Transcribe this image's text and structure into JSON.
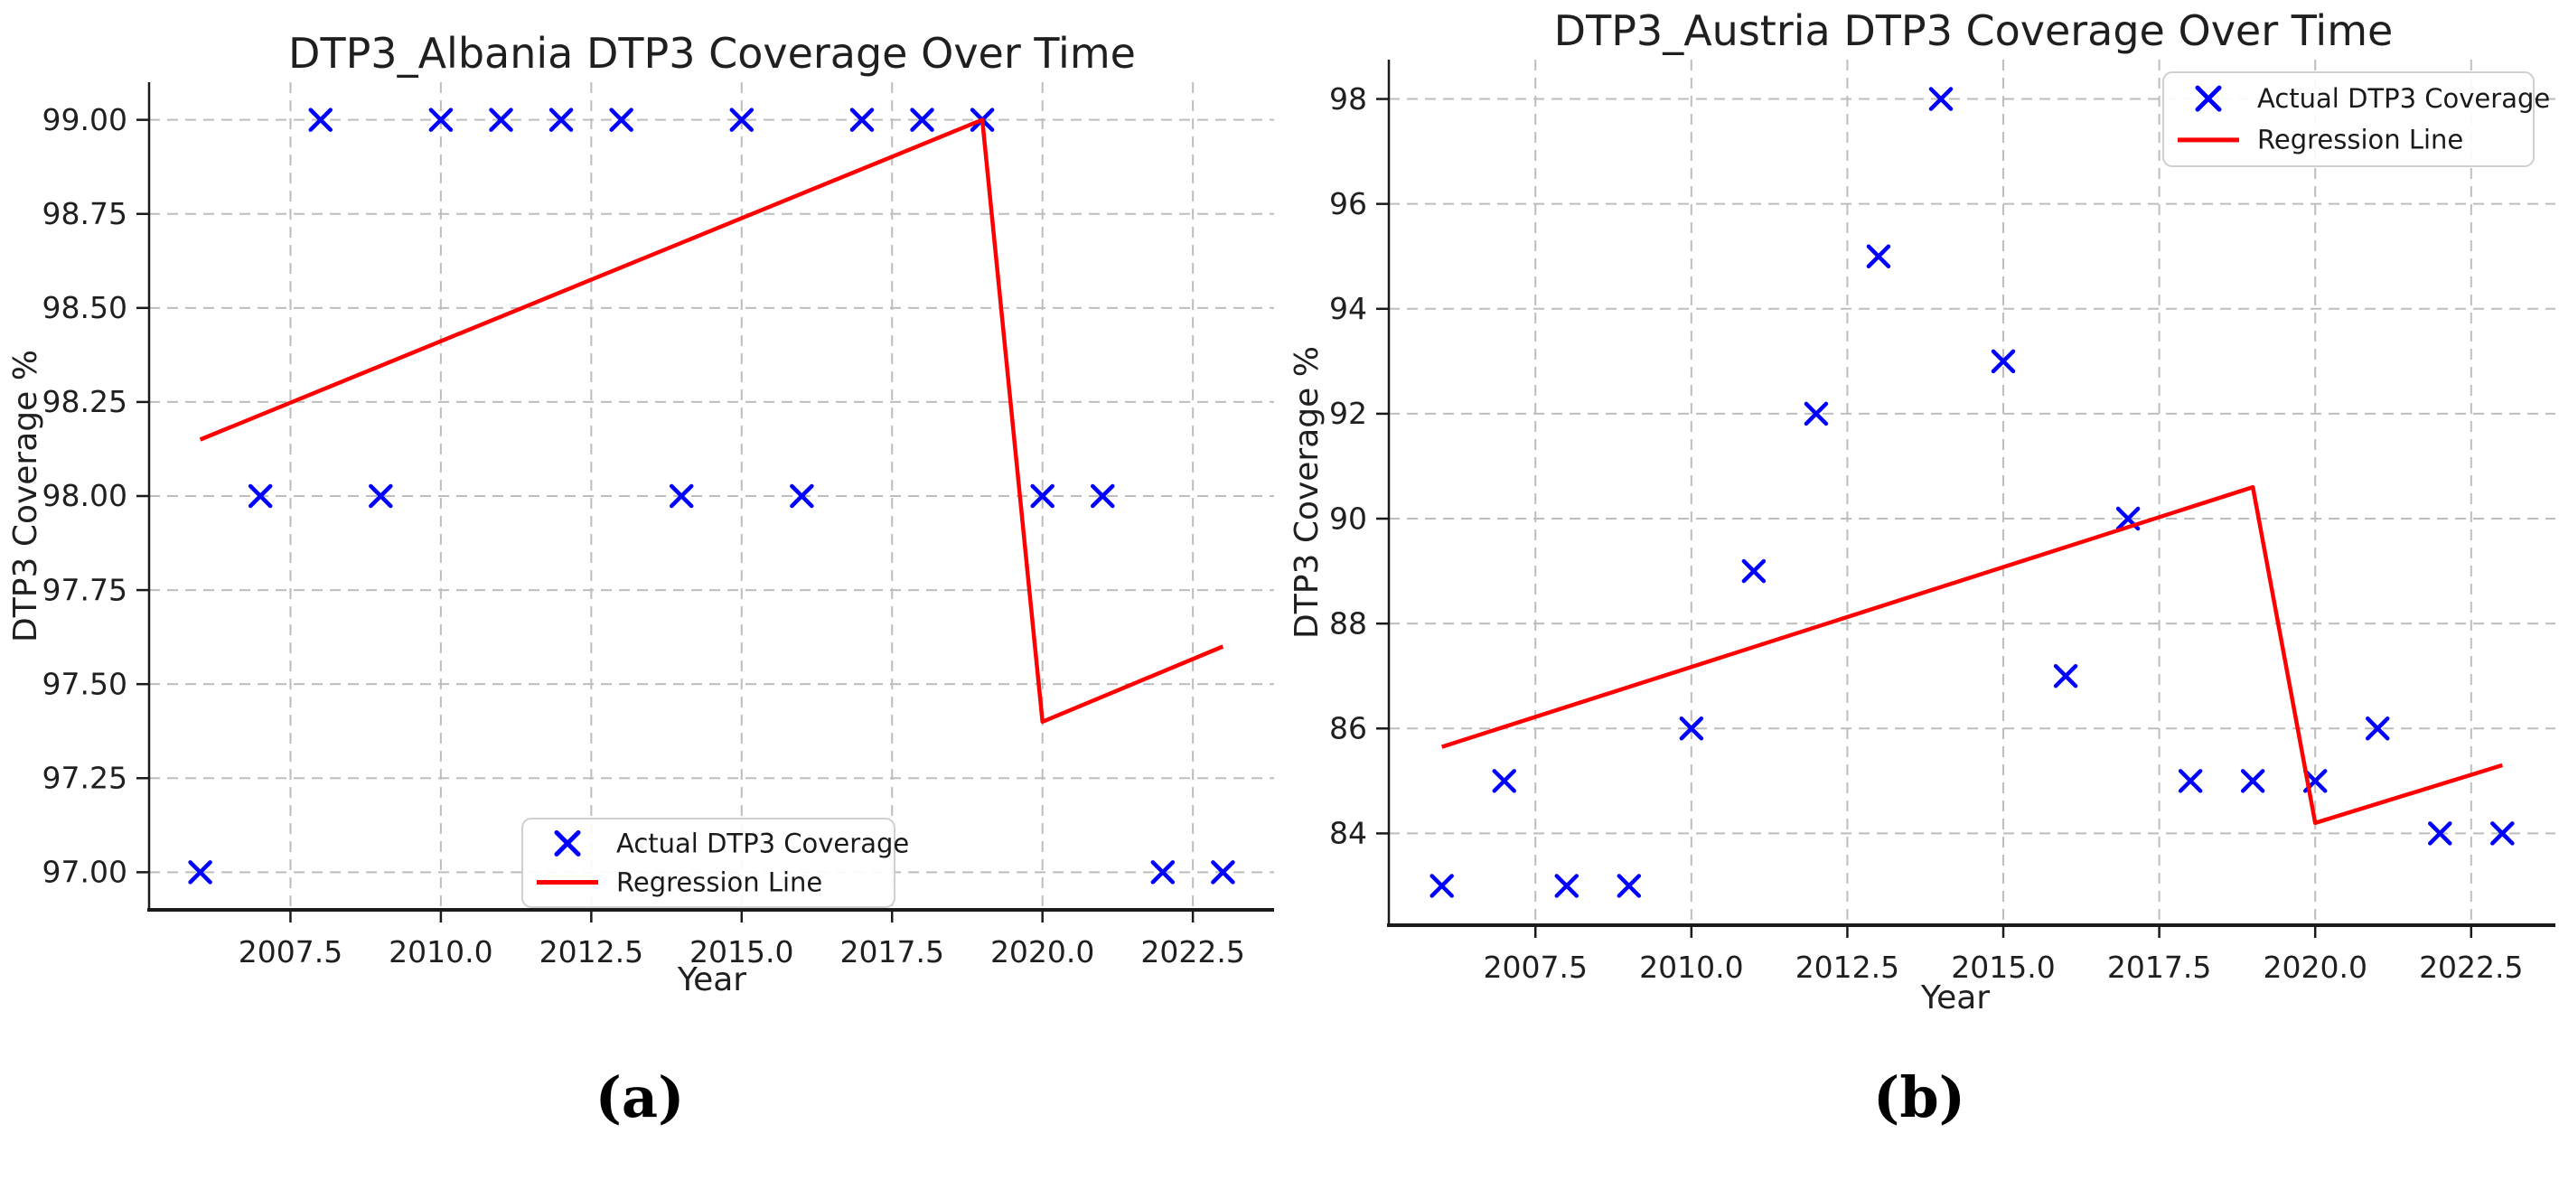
{
  "figure": {
    "captions": [
      {
        "label": "(a)"
      },
      {
        "label": "(b)"
      }
    ]
  },
  "colors": {
    "marker_blue": "#0000ff",
    "regression_red": "#ff0000",
    "grid_gray": "#bdbdbd",
    "text_dark": "#1f1f1f"
  },
  "chart_data": [
    {
      "type": "scatter",
      "title": "DTP3_Albania DTP3 Coverage Over Time",
      "xlabel": "Year",
      "ylabel": "DTP3 Coverage %",
      "years": [
        2006,
        2007,
        2008,
        2009,
        2010,
        2011,
        2012,
        2013,
        2014,
        2015,
        2016,
        2017,
        2018,
        2019,
        2020,
        2021,
        2022,
        2023
      ],
      "series": [
        {
          "name": "Actual DTP3 Coverage",
          "kind": "scatter",
          "marker": "x",
          "color": "#0000ff",
          "values": [
            97,
            98,
            99,
            98,
            99,
            99,
            99,
            99,
            98,
            99,
            98,
            99,
            99,
            99,
            98,
            98,
            97,
            97
          ]
        },
        {
          "name": "Regression Line",
          "kind": "line",
          "color": "#ff0000",
          "x": [
            2006,
            2019,
            2020,
            2023
          ],
          "values": [
            98.15,
            99.0,
            97.4,
            97.6
          ]
        }
      ],
      "xlim": [
        2005.15,
        2023.85
      ],
      "ylim": [
        96.9,
        99.1
      ],
      "xticks": [
        2007.5,
        2010.0,
        2012.5,
        2015.0,
        2017.5,
        2020.0,
        2022.5
      ],
      "xtick_labels": [
        "2007.5",
        "2010.0",
        "2012.5",
        "2015.0",
        "2017.5",
        "2020.0",
        "2022.5"
      ],
      "yticks": [
        99.0,
        98.75,
        98.5,
        98.25,
        98.0,
        97.75,
        97.5,
        97.25,
        97.0
      ],
      "ytick_labels": [
        "99.00",
        "98.75",
        "98.50",
        "98.25",
        "98.00",
        "97.75",
        "97.50",
        "97.25",
        "97.00"
      ],
      "grid": true,
      "legend_position": "lower center"
    },
    {
      "type": "scatter",
      "title": "DTP3_Austria DTP3 Coverage Over Time",
      "xlabel": "Year",
      "ylabel": "DTP3 Coverage %",
      "years": [
        2006,
        2007,
        2008,
        2009,
        2010,
        2011,
        2012,
        2013,
        2014,
        2015,
        2016,
        2017,
        2018,
        2019,
        2020,
        2021,
        2022,
        2023
      ],
      "series": [
        {
          "name": "Actual DTP3 Coverage",
          "kind": "scatter",
          "marker": "x",
          "color": "#0000ff",
          "values": [
            83,
            85,
            83,
            83,
            86,
            89,
            92,
            95,
            98,
            93,
            87,
            90,
            85,
            85,
            85,
            86,
            84,
            84
          ]
        },
        {
          "name": "Regression Line",
          "kind": "line",
          "color": "#ff0000",
          "x": [
            2006,
            2019,
            2020,
            2023
          ],
          "values": [
            85.65,
            90.6,
            84.2,
            85.3
          ]
        }
      ],
      "xlim": [
        2005.15,
        2023.85
      ],
      "ylim": [
        82.25,
        98.75
      ],
      "xticks": [
        2007.5,
        2010.0,
        2012.5,
        2015.0,
        2017.5,
        2020.0,
        2022.5
      ],
      "xtick_labels": [
        "2007.5",
        "2010.0",
        "2012.5",
        "2015.0",
        "2017.5",
        "2020.0",
        "2022.5"
      ],
      "yticks": [
        98,
        96,
        94,
        92,
        90,
        88,
        86,
        84
      ],
      "ytick_labels": [
        "98",
        "96",
        "94",
        "92",
        "90",
        "88",
        "86",
        "84"
      ],
      "grid": true,
      "legend_position": "upper right"
    }
  ]
}
